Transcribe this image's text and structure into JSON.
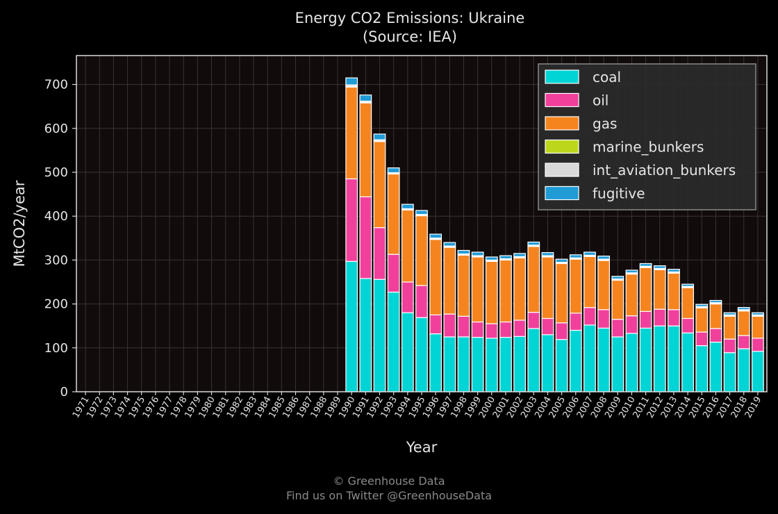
{
  "chart_data": {
    "type": "bar",
    "stacked": true,
    "title": "Energy CO2 Emissions: Ukraine",
    "subtitle": "(Source: IEA)",
    "xlabel": "Year",
    "ylabel": "MtCO2/year",
    "ylim": [
      0,
      750
    ],
    "yticks": [
      0,
      100,
      200,
      300,
      400,
      500,
      600,
      700
    ],
    "grid": true,
    "legend_position": "top-right",
    "categories": [
      "1971",
      "1972",
      "1973",
      "1974",
      "1975",
      "1976",
      "1977",
      "1978",
      "1979",
      "1980",
      "1981",
      "1982",
      "1983",
      "1984",
      "1985",
      "1986",
      "1987",
      "1988",
      "1989",
      "1990",
      "1991",
      "1992",
      "1993",
      "1994",
      "1995",
      "1996",
      "1997",
      "1998",
      "1999",
      "2000",
      "2001",
      "2002",
      "2003",
      "2004",
      "2005",
      "2006",
      "2007",
      "2008",
      "2009",
      "2010",
      "2011",
      "2012",
      "2013",
      "2014",
      "2015",
      "2016",
      "2017",
      "2018",
      "2019"
    ],
    "series": [
      {
        "name": "coal",
        "color": "#00d4d4",
        "values": [
          0,
          0,
          0,
          0,
          0,
          0,
          0,
          0,
          0,
          0,
          0,
          0,
          0,
          0,
          0,
          0,
          0,
          0,
          0,
          297,
          258,
          256,
          227,
          180,
          169,
          132,
          125,
          125,
          124,
          122,
          124,
          126,
          144,
          130,
          119,
          140,
          152,
          145,
          125,
          133,
          145,
          150,
          150,
          134,
          105,
          113,
          89,
          98,
          92
        ]
      },
      {
        "name": "oil",
        "color": "#f0409b",
        "values": [
          0,
          0,
          0,
          0,
          0,
          0,
          0,
          0,
          0,
          0,
          0,
          0,
          0,
          0,
          0,
          0,
          0,
          0,
          0,
          188,
          186,
          118,
          86,
          70,
          73,
          43,
          52,
          47,
          35,
          33,
          35,
          37,
          37,
          37,
          38,
          39,
          40,
          42,
          40,
          40,
          38,
          38,
          37,
          33,
          31,
          31,
          31,
          30,
          30
        ]
      },
      {
        "name": "gas",
        "color": "#f5841f",
        "values": [
          0,
          0,
          0,
          0,
          0,
          0,
          0,
          0,
          0,
          0,
          0,
          0,
          0,
          0,
          0,
          0,
          0,
          0,
          0,
          209,
          214,
          196,
          183,
          164,
          159,
          172,
          152,
          139,
          148,
          142,
          141,
          142,
          150,
          140,
          135,
          123,
          116,
          112,
          89,
          95,
          100,
          90,
          83,
          70,
          55,
          56,
          52,
          56,
          50
        ]
      },
      {
        "name": "marine_bunkers",
        "color": "#bcd61c",
        "values": [
          0,
          0,
          0,
          0,
          0,
          0,
          0,
          0,
          0,
          0,
          0,
          0,
          0,
          0,
          0,
          0,
          0,
          0,
          0,
          1,
          1,
          1,
          1,
          1,
          1,
          1,
          1,
          1,
          1,
          1,
          1,
          1,
          1,
          1,
          1,
          1,
          1,
          1,
          1,
          1,
          1,
          1,
          1,
          1,
          1,
          1,
          1,
          1,
          1
        ]
      },
      {
        "name": "int_aviation_bunkers",
        "color": "#d9d9d9",
        "values": [
          0,
          0,
          0,
          0,
          0,
          0,
          0,
          0,
          0,
          0,
          0,
          0,
          0,
          0,
          0,
          0,
          0,
          0,
          0,
          4,
          3,
          3,
          2,
          2,
          2,
          2,
          2,
          2,
          2,
          2,
          2,
          2,
          2,
          2,
          2,
          2,
          2,
          2,
          2,
          2,
          2,
          2,
          2,
          2,
          2,
          2,
          2,
          2,
          2
        ]
      },
      {
        "name": "fugitive",
        "color": "#1f9bd6",
        "values": [
          0,
          0,
          0,
          0,
          0,
          0,
          0,
          0,
          0,
          0,
          0,
          0,
          0,
          0,
          0,
          0,
          0,
          0,
          0,
          16,
          14,
          13,
          11,
          10,
          9,
          9,
          8,
          8,
          8,
          7,
          7,
          7,
          7,
          7,
          7,
          7,
          7,
          7,
          6,
          6,
          6,
          6,
          6,
          5,
          5,
          5,
          5,
          5,
          5
        ]
      }
    ]
  },
  "footer": {
    "line1": "© Greenhouse Data",
    "line2": "Find us on Twitter @GreenhouseData"
  }
}
